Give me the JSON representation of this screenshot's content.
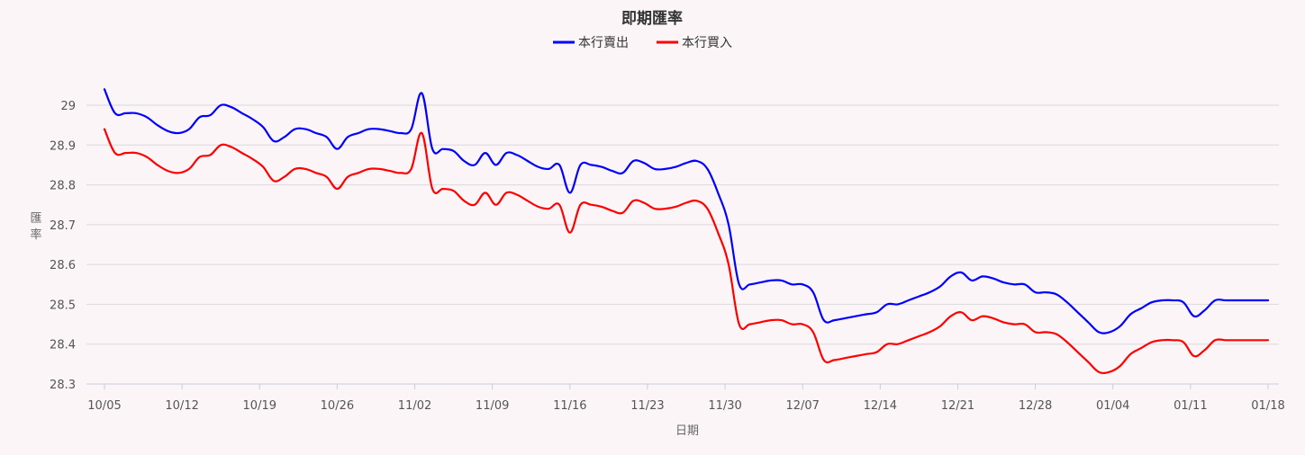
{
  "chart_data": {
    "type": "line",
    "title": "即期匯率",
    "xlabel": "日期",
    "ylabel": "匯率",
    "ylim": [
      28.3,
      29
    ],
    "y_ticks": [
      "28.3",
      "28.4",
      "28.5",
      "28.6",
      "28.7",
      "28.8",
      "28.9",
      "29"
    ],
    "x_tick_labels": [
      "10/05",
      "10/12",
      "10/19",
      "10/26",
      "11/02",
      "11/09",
      "11/16",
      "11/23",
      "11/30",
      "12/07",
      "12/14",
      "12/21",
      "12/28",
      "01/04",
      "01/11",
      "01/18"
    ],
    "legend_position": "top-center",
    "grid": true,
    "series": [
      {
        "name": "本行賣出",
        "color": "#0000ff",
        "points": [
          [
            0,
            29.04
          ],
          [
            1,
            28.98
          ],
          [
            2,
            28.98
          ],
          [
            3,
            28.98
          ],
          [
            4,
            28.97
          ],
          [
            5,
            28.95
          ],
          [
            6,
            28.935
          ],
          [
            7,
            28.93
          ],
          [
            8,
            28.94
          ],
          [
            9,
            28.97
          ],
          [
            10,
            28.975
          ],
          [
            11,
            29.0
          ],
          [
            12,
            28.995
          ],
          [
            13,
            28.98
          ],
          [
            14,
            28.965
          ],
          [
            15,
            28.945
          ],
          [
            16,
            28.91
          ],
          [
            17,
            28.92
          ],
          [
            18,
            28.94
          ],
          [
            19,
            28.94
          ],
          [
            20,
            28.93
          ],
          [
            21,
            28.92
          ],
          [
            22,
            28.89
          ],
          [
            23,
            28.92
          ],
          [
            24,
            28.93
          ],
          [
            25,
            28.94
          ],
          [
            26,
            28.94
          ],
          [
            27,
            28.935
          ],
          [
            28,
            28.93
          ],
          [
            29,
            28.94
          ],
          [
            30,
            29.03
          ],
          [
            31,
            28.89
          ],
          [
            32,
            28.89
          ],
          [
            33,
            28.885
          ],
          [
            34,
            28.86
          ],
          [
            35,
            28.85
          ],
          [
            36,
            28.88
          ],
          [
            37,
            28.85
          ],
          [
            38,
            28.88
          ],
          [
            39,
            28.875
          ],
          [
            40,
            28.86
          ],
          [
            41,
            28.845
          ],
          [
            42,
            28.84
          ],
          [
            43,
            28.85
          ],
          [
            44,
            28.78
          ],
          [
            45,
            28.85
          ],
          [
            46,
            28.85
          ],
          [
            47,
            28.845
          ],
          [
            48,
            28.835
          ],
          [
            49,
            28.83
          ],
          [
            50,
            28.86
          ],
          [
            51,
            28.855
          ],
          [
            52,
            28.84
          ],
          [
            53,
            28.84
          ],
          [
            54,
            28.845
          ],
          [
            55,
            28.855
          ],
          [
            56,
            28.86
          ],
          [
            57,
            28.84
          ],
          [
            58,
            28.78
          ],
          [
            59,
            28.7
          ],
          [
            60,
            28.55
          ],
          [
            61,
            28.55
          ],
          [
            62,
            28.555
          ],
          [
            63,
            28.56
          ],
          [
            64,
            28.56
          ],
          [
            65,
            28.55
          ],
          [
            66,
            28.55
          ],
          [
            67,
            28.53
          ],
          [
            68,
            28.46
          ],
          [
            69,
            28.46
          ],
          [
            70,
            28.465
          ],
          [
            71,
            28.47
          ],
          [
            72,
            28.475
          ],
          [
            73,
            28.48
          ],
          [
            74,
            28.5
          ],
          [
            75,
            28.5
          ],
          [
            76,
            28.51
          ],
          [
            77,
            28.52
          ],
          [
            78,
            28.53
          ],
          [
            79,
            28.545
          ],
          [
            80,
            28.57
          ],
          [
            81,
            28.58
          ],
          [
            82,
            28.56
          ],
          [
            83,
            28.57
          ],
          [
            84,
            28.565
          ],
          [
            85,
            28.555
          ],
          [
            86,
            28.55
          ],
          [
            87,
            28.55
          ],
          [
            88,
            28.53
          ],
          [
            89,
            28.53
          ],
          [
            90,
            28.525
          ],
          [
            91,
            28.505
          ],
          [
            92,
            28.48
          ],
          [
            93,
            28.455
          ],
          [
            94,
            28.43
          ],
          [
            95,
            28.43
          ],
          [
            96,
            28.445
          ],
          [
            97,
            28.475
          ],
          [
            98,
            28.49
          ],
          [
            99,
            28.505
          ],
          [
            100,
            28.51
          ],
          [
            101,
            28.51
          ],
          [
            102,
            28.505
          ],
          [
            103,
            28.47
          ],
          [
            104,
            28.485
          ],
          [
            105,
            28.51
          ],
          [
            106,
            28.51
          ],
          [
            107,
            28.51
          ],
          [
            108,
            28.51
          ],
          [
            109,
            28.51
          ],
          [
            110,
            28.51
          ]
        ]
      },
      {
        "name": "本行買入",
        "color": "#ff0000",
        "points": [
          [
            0,
            28.94
          ],
          [
            1,
            28.88
          ],
          [
            2,
            28.88
          ],
          [
            3,
            28.88
          ],
          [
            4,
            28.87
          ],
          [
            5,
            28.85
          ],
          [
            6,
            28.835
          ],
          [
            7,
            28.83
          ],
          [
            8,
            28.84
          ],
          [
            9,
            28.87
          ],
          [
            10,
            28.875
          ],
          [
            11,
            28.9
          ],
          [
            12,
            28.895
          ],
          [
            13,
            28.88
          ],
          [
            14,
            28.865
          ],
          [
            15,
            28.845
          ],
          [
            16,
            28.81
          ],
          [
            17,
            28.82
          ],
          [
            18,
            28.84
          ],
          [
            19,
            28.84
          ],
          [
            20,
            28.83
          ],
          [
            21,
            28.82
          ],
          [
            22,
            28.79
          ],
          [
            23,
            28.82
          ],
          [
            24,
            28.83
          ],
          [
            25,
            28.84
          ],
          [
            26,
            28.84
          ],
          [
            27,
            28.835
          ],
          [
            28,
            28.83
          ],
          [
            29,
            28.84
          ],
          [
            30,
            28.93
          ],
          [
            31,
            28.79
          ],
          [
            32,
            28.79
          ],
          [
            33,
            28.785
          ],
          [
            34,
            28.76
          ],
          [
            35,
            28.75
          ],
          [
            36,
            28.78
          ],
          [
            37,
            28.75
          ],
          [
            38,
            28.78
          ],
          [
            39,
            28.775
          ],
          [
            40,
            28.76
          ],
          [
            41,
            28.745
          ],
          [
            42,
            28.74
          ],
          [
            43,
            28.75
          ],
          [
            44,
            28.68
          ],
          [
            45,
            28.75
          ],
          [
            46,
            28.75
          ],
          [
            47,
            28.745
          ],
          [
            48,
            28.735
          ],
          [
            49,
            28.73
          ],
          [
            50,
            28.76
          ],
          [
            51,
            28.755
          ],
          [
            52,
            28.74
          ],
          [
            53,
            28.74
          ],
          [
            54,
            28.745
          ],
          [
            55,
            28.755
          ],
          [
            56,
            28.76
          ],
          [
            57,
            28.74
          ],
          [
            58,
            28.68
          ],
          [
            59,
            28.6
          ],
          [
            60,
            28.45
          ],
          [
            61,
            28.45
          ],
          [
            62,
            28.455
          ],
          [
            63,
            28.46
          ],
          [
            64,
            28.46
          ],
          [
            65,
            28.45
          ],
          [
            66,
            28.45
          ],
          [
            67,
            28.43
          ],
          [
            68,
            28.36
          ],
          [
            69,
            28.36
          ],
          [
            70,
            28.365
          ],
          [
            71,
            28.37
          ],
          [
            72,
            28.375
          ],
          [
            73,
            28.38
          ],
          [
            74,
            28.4
          ],
          [
            75,
            28.4
          ],
          [
            76,
            28.41
          ],
          [
            77,
            28.42
          ],
          [
            78,
            28.43
          ],
          [
            79,
            28.445
          ],
          [
            80,
            28.47
          ],
          [
            81,
            28.48
          ],
          [
            82,
            28.46
          ],
          [
            83,
            28.47
          ],
          [
            84,
            28.465
          ],
          [
            85,
            28.455
          ],
          [
            86,
            28.45
          ],
          [
            87,
            28.45
          ],
          [
            88,
            28.43
          ],
          [
            89,
            28.43
          ],
          [
            90,
            28.425
          ],
          [
            91,
            28.405
          ],
          [
            92,
            28.38
          ],
          [
            93,
            28.355
          ],
          [
            94,
            28.33
          ],
          [
            95,
            28.33
          ],
          [
            96,
            28.345
          ],
          [
            97,
            28.375
          ],
          [
            98,
            28.39
          ],
          [
            99,
            28.405
          ],
          [
            100,
            28.41
          ],
          [
            101,
            28.41
          ],
          [
            102,
            28.405
          ],
          [
            103,
            28.37
          ],
          [
            104,
            28.385
          ],
          [
            105,
            28.41
          ],
          [
            106,
            28.41
          ],
          [
            107,
            28.41
          ],
          [
            108,
            28.41
          ],
          [
            109,
            28.41
          ],
          [
            110,
            28.41
          ]
        ]
      }
    ]
  }
}
